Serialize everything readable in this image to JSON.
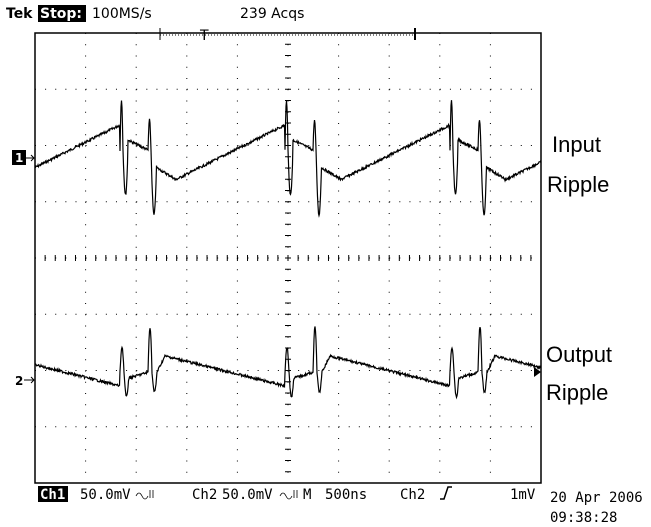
{
  "header": {
    "brand": "Tek",
    "state": "Stop:",
    "sample_rate": "100MS/s",
    "acquisitions": "239 Acqs",
    "trigger_marker": "T"
  },
  "channels": [
    {
      "marker": "1",
      "label": [
        "Input",
        "Ripple"
      ]
    },
    {
      "marker": "2",
      "label": [
        "Output",
        "Ripple"
      ]
    }
  ],
  "footer": {
    "ch1": "Ch1",
    "ch1_scale": "50.0mV",
    "ch2": "Ch2",
    "ch2_scale": "50.0mV",
    "timebase_label": "M",
    "timebase": "500ns",
    "trigger_source": "Ch2",
    "trigger_level": "1mV",
    "date": "20 Apr 2006",
    "time": "09:38:28"
  }
}
